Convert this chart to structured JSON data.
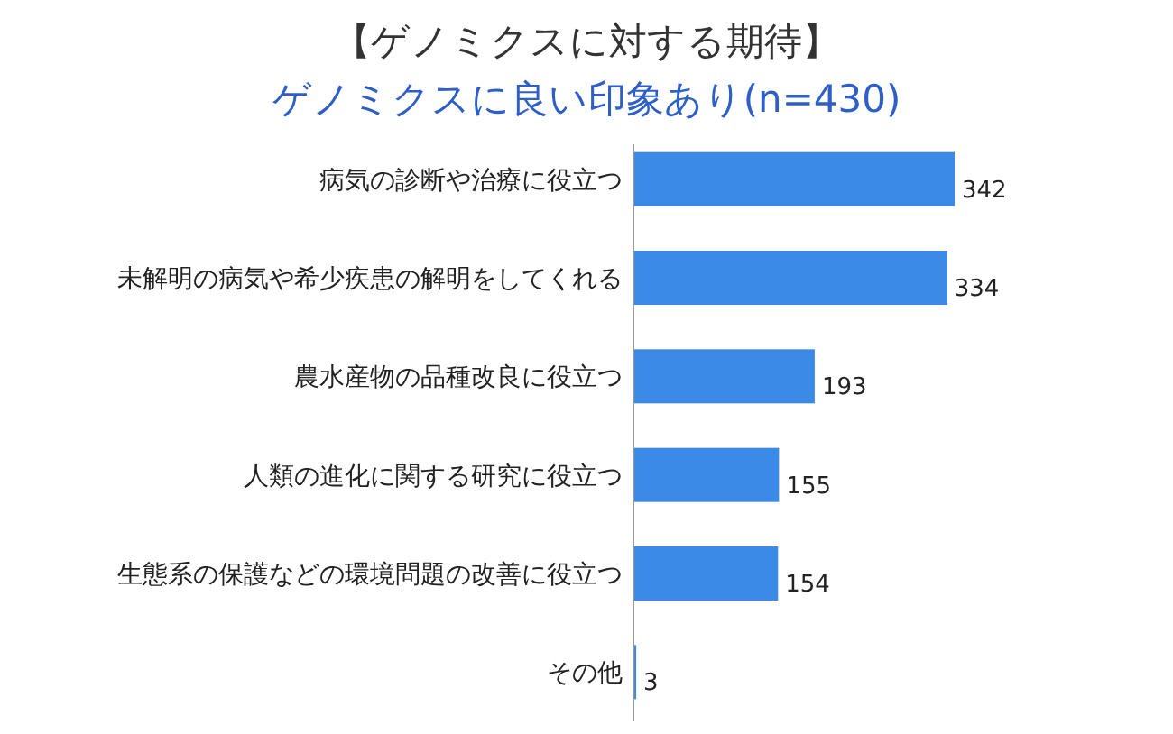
{
  "chart_data": {
    "type": "bar",
    "orientation": "horizontal",
    "title": "【ゲノミクスに対する期待】",
    "subtitle": "ゲノミクスに良い印象あり(n=430)",
    "categories": [
      "病気の診断や治療に役立つ",
      "未解明の病気や希少疾患の解明をしてくれる",
      "農水産物の品種改良に役立つ",
      "人類の進化に関する研究に役立つ",
      "生態系の保護などの環境問題の改善に役立つ",
      "その他"
    ],
    "values": [
      342,
      334,
      193,
      155,
      154,
      3
    ],
    "color": "#3c8ae8",
    "data_labels": true
  }
}
